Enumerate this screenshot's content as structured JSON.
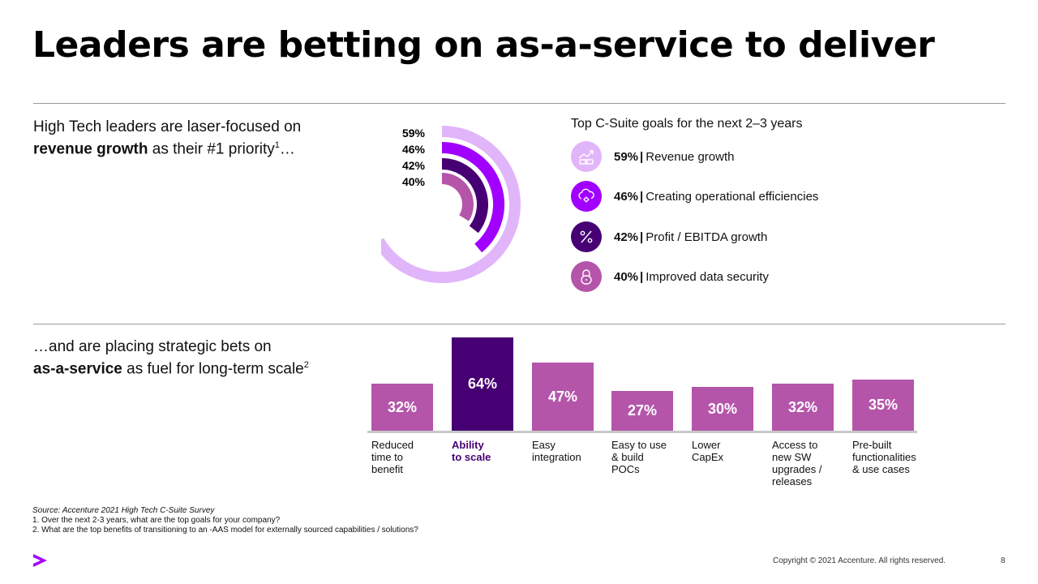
{
  "title": "Leaders are betting on as-a-service to deliver",
  "intro_top": {
    "line1": "High Tech leaders are laser-focused on",
    "bold": "revenue growth",
    "rest": " as their #1 priority",
    "sup": "1",
    "tail": "…"
  },
  "intro_bottom": {
    "line1": "…and are placing strategic bets on",
    "bold": "as-a-service",
    "rest": " as fuel for long-term scale",
    "sup": "2"
  },
  "goals_heading": "Top C-Suite goals for the next 2–3 years",
  "goals": [
    {
      "pct": "59%",
      "label": "Revenue growth",
      "icon": "revenue-growth-icon",
      "color": "#e1b5fa"
    },
    {
      "pct": "46%",
      "label": "Creating operational efficiencies",
      "icon": "cloud-gear-icon",
      "color": "#a100ff"
    },
    {
      "pct": "42%",
      "label": "Profit / EBITDA growth",
      "icon": "percent-icon",
      "color": "#460073"
    },
    {
      "pct": "40%",
      "label": "Improved data security",
      "icon": "lock-icon",
      "color": "#b455aa"
    }
  ],
  "goal_separator": "|",
  "colors": {
    "ring_59": "#e1b5fa",
    "ring_46": "#a100ff",
    "ring_42": "#460073",
    "ring_40": "#b455aa",
    "bar_default": "#b455aa",
    "bar_highlight": "#460073",
    "accent": "#a100ff"
  },
  "chart_data": [
    {
      "type": "radial-bar",
      "values": [
        59,
        46,
        42,
        40
      ],
      "labels": [
        "59%",
        "46%",
        "42%",
        "40%"
      ],
      "series": [
        {
          "name": "Revenue growth",
          "value": 59
        },
        {
          "name": "Creating operational efficiencies",
          "value": 46
        },
        {
          "name": "Profit / EBITDA growth",
          "value": 42
        },
        {
          "name": "Improved data security",
          "value": 40
        }
      ]
    },
    {
      "type": "bar",
      "categories": [
        "Reduced time to benefit",
        "Ability to scale",
        "Easy integration",
        "Easy to use & build POCs",
        "Lower CapEx",
        "Access to new SW upgrades / releases",
        "Pre-built functionalities & use cases"
      ],
      "category_lines": [
        [
          "Reduced",
          "time to",
          "benefit"
        ],
        [
          "Ability",
          "to scale"
        ],
        [
          "Easy",
          "integration"
        ],
        [
          "Easy to use",
          "& build",
          "POCs"
        ],
        [
          "Lower",
          "CapEx"
        ],
        [
          "Access to",
          "new SW",
          "upgrades /",
          "releases"
        ],
        [
          "Pre-built",
          "functionalities",
          "& use cases"
        ]
      ],
      "values": [
        32,
        64,
        47,
        27,
        30,
        32,
        35
      ],
      "value_labels": [
        "32%",
        "64%",
        "47%",
        "27%",
        "30%",
        "32%",
        "35%"
      ],
      "highlight_index": 1
    }
  ],
  "source": {
    "line": "Source: Accenture 2021 High Tech C-Suite Survey",
    "note1": "1. Over the next 2-3 years, what are the top goals for your company?",
    "note2": "2. What are the top benefits of transitioning to an -AAS model for externally sourced capabilities / solutions?"
  },
  "footer": {
    "copyright": "Copyright © 2021 Accenture. All rights reserved.",
    "page": "8",
    "logo": "accenture-greater-than-logo"
  }
}
